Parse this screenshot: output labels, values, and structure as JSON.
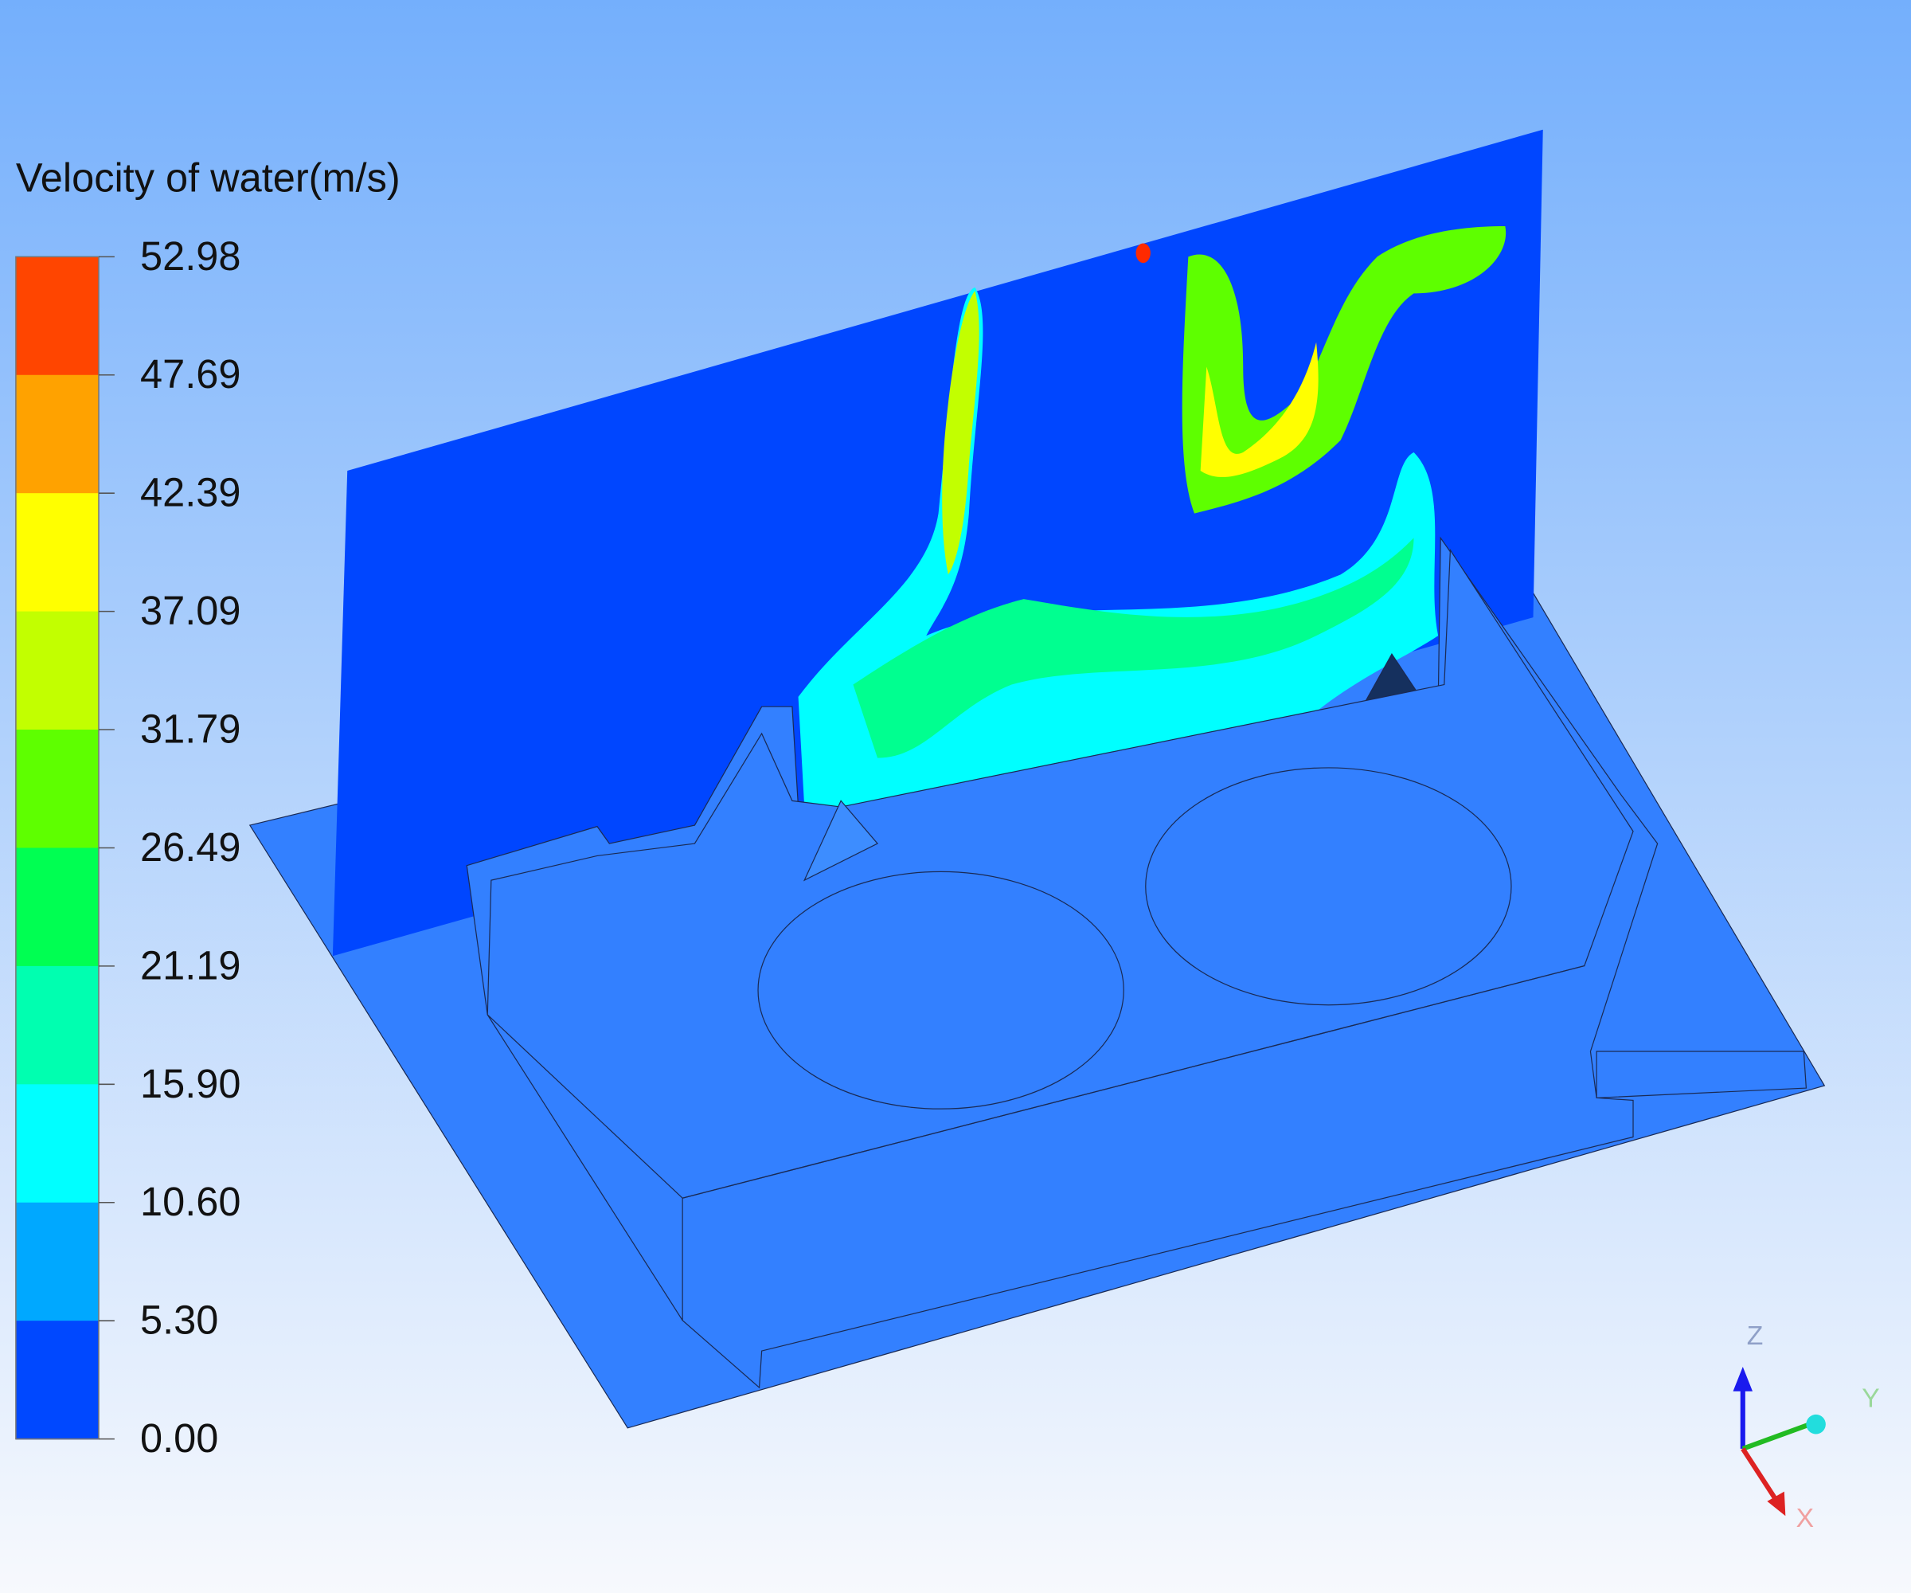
{
  "legend": {
    "title": "Velocity of water(m/s)",
    "ticks": [
      "52.98",
      "47.69",
      "42.39",
      "37.09",
      "31.79",
      "26.49",
      "21.19",
      "15.90",
      "10.60",
      "5.30",
      "0.00"
    ],
    "colors": [
      "#ff4500",
      "#ffa200",
      "#ffff00",
      "#c2ff00",
      "#5eff00",
      "#00ff52",
      "#00ffb0",
      "#00ffff",
      "#00a8ff",
      "#0048ff"
    ]
  },
  "axes": {
    "z": "Z",
    "y": "Y",
    "x": "X"
  }
}
